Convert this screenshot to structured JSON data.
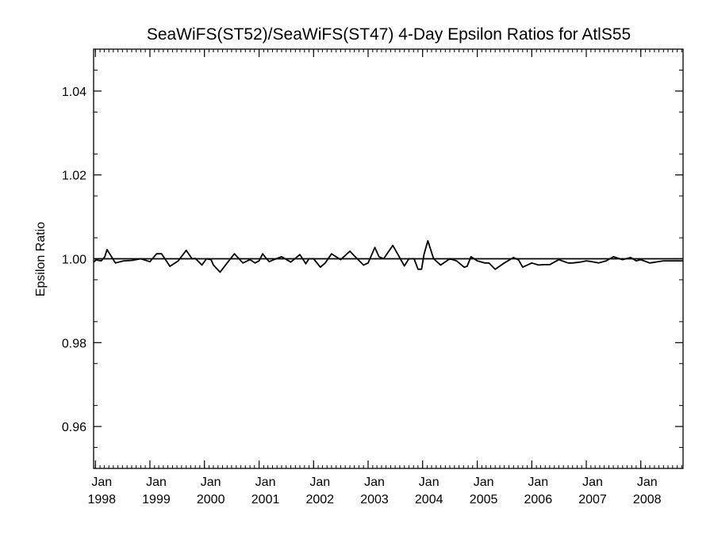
{
  "chart_data": {
    "type": "line",
    "title": "SeaWiFS(ST52)/SeaWiFS(ST47) 4-Day Epsilon Ratios for AtlS55",
    "xlabel": "",
    "ylabel": "Epsilon Ratio",
    "xlim": [
      "1997-12-20",
      "2008-10-10"
    ],
    "ylim": [
      0.95,
      1.05
    ],
    "y_ticks": [
      {
        "value": 0.96,
        "label": "0.96"
      },
      {
        "value": 0.98,
        "label": "0.98"
      },
      {
        "value": 1.0,
        "label": "1.00"
      },
      {
        "value": 1.02,
        "label": "1.02"
      },
      {
        "value": 1.04,
        "label": "1.04"
      }
    ],
    "x_ticks": [
      {
        "date": "1998-01-01",
        "month": "Jan",
        "year": "1998"
      },
      {
        "date": "1999-01-01",
        "month": "Jan",
        "year": "1999"
      },
      {
        "date": "2000-01-01",
        "month": "Jan",
        "year": "2000"
      },
      {
        "date": "2001-01-01",
        "month": "Jan",
        "year": "2001"
      },
      {
        "date": "2002-01-01",
        "month": "Jan",
        "year": "2002"
      },
      {
        "date": "2003-01-01",
        "month": "Jan",
        "year": "2003"
      },
      {
        "date": "2004-01-01",
        "month": "Jan",
        "year": "2004"
      },
      {
        "date": "2005-01-01",
        "month": "Jan",
        "year": "2005"
      },
      {
        "date": "2006-01-01",
        "month": "Jan",
        "year": "2006"
      },
      {
        "date": "2007-01-01",
        "month": "Jan",
        "year": "2007"
      },
      {
        "date": "2008-01-01",
        "month": "Jan",
        "year": "2008"
      }
    ],
    "reference_line": 1.0,
    "grid": false,
    "series": [
      {
        "x": [
          "1997-12-20",
          "1998-01-05",
          "1998-02-10",
          "1998-03-05",
          "1998-03-20",
          "1998-05-15",
          "1998-07-10",
          "1998-09-01",
          "1998-11-01",
          "1999-01-01",
          "1999-02-15",
          "1999-03-20",
          "1999-05-15",
          "1999-07-10",
          "1999-09-01",
          "1999-10-10",
          "1999-11-01",
          "1999-12-15",
          "2000-01-15",
          "2000-02-15",
          "2000-03-01",
          "2000-04-15",
          "2000-06-01",
          "2000-07-20",
          "2000-09-15",
          "2000-11-01",
          "2000-12-05",
          "2001-01-01",
          "2001-01-25",
          "2001-02-20",
          "2001-03-10",
          "2001-04-10",
          "2001-06-01",
          "2001-08-01",
          "2001-10-01",
          "2001-11-10",
          "2001-12-01",
          "2002-01-01",
          "2002-02-15",
          "2002-03-20",
          "2002-05-01",
          "2002-07-01",
          "2002-09-01",
          "2002-10-20",
          "2002-12-01",
          "2003-01-01",
          "2003-02-15",
          "2003-03-15",
          "2003-04-15",
          "2003-06-15",
          "2003-09-01",
          "2003-10-01",
          "2003-11-05",
          "2003-12-01",
          "2003-12-25",
          "2004-01-10",
          "2004-02-05",
          "2004-03-15",
          "2004-05-01",
          "2004-07-01",
          "2004-08-15",
          "2004-10-05",
          "2004-10-25",
          "2004-11-20",
          "2005-01-01",
          "2005-02-20",
          "2005-03-20",
          "2005-05-01",
          "2005-07-01",
          "2005-09-01",
          "2005-10-05",
          "2005-11-01",
          "2006-01-01",
          "2006-02-15",
          "2006-03-20",
          "2006-05-01",
          "2006-07-01",
          "2006-09-01",
          "2006-10-01",
          "2006-11-20",
          "2007-01-01",
          "2007-02-10",
          "2007-03-25",
          "2007-05-15",
          "2007-07-01",
          "2007-09-01",
          "2007-10-25",
          "2007-12-01",
          "2008-01-01",
          "2008-03-01",
          "2008-06-01",
          "2008-10-10"
        ],
        "values": [
          0.9992,
          0.9997,
          0.9995,
          1.0005,
          1.0022,
          0.999,
          0.9995,
          0.9996,
          1.0,
          0.9993,
          1.0012,
          1.0012,
          0.9982,
          0.9995,
          1.002,
          1.0,
          1.0001,
          0.9985,
          1.0,
          0.9998,
          0.9985,
          0.9968,
          0.999,
          1.0012,
          0.999,
          0.9998,
          0.999,
          0.9995,
          1.0012,
          1.0,
          0.9993,
          0.9998,
          1.0005,
          0.9992,
          1.001,
          0.9988,
          1.0,
          1.0,
          0.998,
          0.999,
          1.0012,
          0.9998,
          1.0018,
          1.0,
          0.9985,
          0.999,
          1.0027,
          1.0005,
          1.0,
          1.0032,
          0.9983,
          1.0,
          1.0,
          0.9975,
          0.9975,
          1.001,
          1.0043,
          1.0,
          0.9985,
          1.0,
          0.9995,
          0.998,
          0.9982,
          1.0005,
          0.9995,
          0.999,
          0.999,
          0.9975,
          0.999,
          1.0003,
          0.9997,
          0.998,
          0.999,
          0.9985,
          0.9986,
          0.9986,
          0.9998,
          0.999,
          0.999,
          0.9992,
          0.9995,
          0.9993,
          0.999,
          0.9995,
          1.0005,
          0.9998,
          1.0003,
          0.9995,
          0.9998,
          0.999,
          0.9995,
          0.9995
        ]
      }
    ]
  }
}
